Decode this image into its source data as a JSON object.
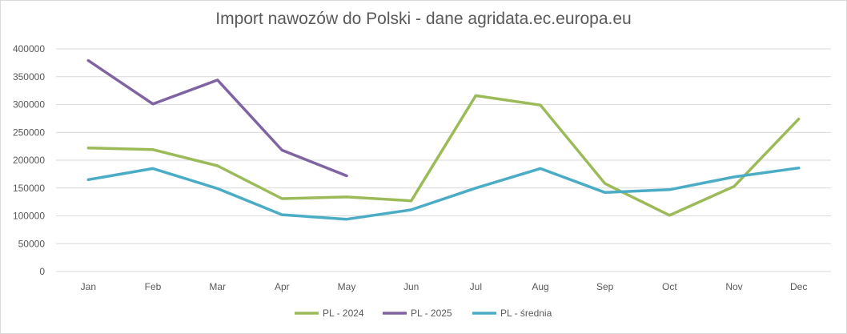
{
  "chart_data": {
    "type": "line",
    "title": "Import nawozów do Polski - dane agridata.ec.europa.eu",
    "categories": [
      "Jan",
      "Feb",
      "Mar",
      "Apr",
      "May",
      "Jun",
      "Jul",
      "Aug",
      "Sep",
      "Oct",
      "Nov",
      "Dec"
    ],
    "y_ticks": [
      "0",
      "50000",
      "100000",
      "150000",
      "200000",
      "250000",
      "300000",
      "350000",
      "400000"
    ],
    "ylim": [
      0,
      400000
    ],
    "grid": true,
    "legend_position": "bottom",
    "series": [
      {
        "name": "PL - 2024",
        "color": "#9bbb59",
        "values": [
          222000,
          219000,
          190000,
          131000,
          134000,
          127000,
          316000,
          299000,
          158000,
          101000,
          153000,
          274000
        ]
      },
      {
        "name": "PL - 2025",
        "color": "#8064a2",
        "values": [
          379000,
          301000,
          344000,
          218000,
          172000,
          null,
          null,
          null,
          null,
          null,
          null,
          null
        ]
      },
      {
        "name": "PL - średnia",
        "color": "#4bacc6",
        "values": [
          165000,
          185000,
          149000,
          102000,
          94000,
          111000,
          150000,
          185000,
          142000,
          147000,
          170000,
          186000
        ]
      }
    ]
  }
}
